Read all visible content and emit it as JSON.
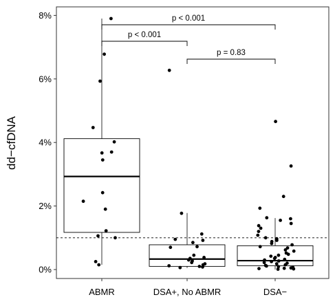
{
  "chart_data": {
    "type": "box",
    "ylabel": "dd−cfDNA",
    "ylim": [
      0,
      8
    ],
    "y_ticks": [
      {
        "value": 0,
        "label": "0%"
      },
      {
        "value": 2,
        "label": "2%"
      },
      {
        "value": 4,
        "label": "4%"
      },
      {
        "value": 6,
        "label": "6%"
      },
      {
        "value": 8,
        "label": "8%"
      }
    ],
    "grid": false,
    "reference_line": {
      "y": 1.0,
      "style": "dashed"
    },
    "categories": [
      "ABMR",
      "DSA+, No ABMR",
      "DSA−"
    ],
    "boxes": [
      {
        "category": "ABMR",
        "whisker_low": 0.15,
        "q1": 1.17,
        "median": 2.93,
        "q3": 4.12,
        "whisker_high": 7.9
      },
      {
        "category": "DSA+, No ABMR",
        "whisker_low": 0.05,
        "q1": 0.1,
        "median": 0.33,
        "q3": 0.78,
        "whisker_high": 1.78
      },
      {
        "category": "DSA−",
        "whisker_low": 0.0,
        "q1": 0.12,
        "median": 0.28,
        "q3": 0.75,
        "whisker_high": 1.62
      }
    ],
    "points": [
      {
        "category": "ABMR",
        "values": [
          7.9,
          6.78,
          5.93,
          4.47,
          4.02,
          3.7,
          3.67,
          3.45,
          2.42,
          2.15,
          1.9,
          1.22,
          1.06,
          1.0,
          0.25,
          0.15
        ]
      },
      {
        "category": "DSA+, No ABMR",
        "values": [
          6.27,
          1.77,
          1.12,
          0.95,
          0.92,
          0.85,
          0.72,
          0.7,
          0.45,
          0.38,
          0.35,
          0.3,
          0.27,
          0.22,
          0.18,
          0.15,
          0.12,
          0.1,
          0.08,
          0.06
        ]
      },
      {
        "category": "DSA−",
        "values": [
          4.66,
          3.26,
          2.3,
          1.93,
          1.63,
          1.6,
          1.55,
          1.45,
          1.38,
          1.3,
          1.2,
          1.08,
          1.0,
          0.97,
          0.92,
          0.88,
          0.82,
          0.78,
          0.72,
          0.68,
          0.62,
          0.58,
          0.52,
          0.48,
          0.45,
          0.42,
          0.38,
          0.35,
          0.32,
          0.3,
          0.27,
          0.25,
          0.22,
          0.2,
          0.18,
          0.15,
          0.13,
          0.11,
          0.09,
          0.07,
          0.05,
          0.04,
          0.03,
          0.02,
          0.01
        ]
      }
    ],
    "comparisons": [
      {
        "from": "ABMR",
        "to": "DSA−",
        "label": "p < 0.001"
      },
      {
        "from": "ABMR",
        "to": "DSA+, No ABMR",
        "label": "p < 0.001"
      },
      {
        "from": "DSA+, No ABMR",
        "to": "DSA−",
        "label": "p = 0.83"
      }
    ]
  }
}
